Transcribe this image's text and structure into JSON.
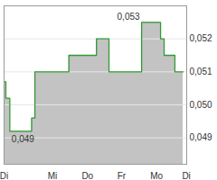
{
  "chart_data": {
    "type": "line",
    "x": [
      0,
      0.05,
      0.16,
      0.77,
      0.86,
      1.81,
      2.58,
      2.93,
      3.84,
      4.37,
      4.47,
      4.77,
      5.0
    ],
    "values": [
      0.0507,
      0.0502,
      0.0492,
      0.0496,
      0.051,
      0.0515,
      0.052,
      0.051,
      0.0525,
      0.052,
      0.0515,
      0.051,
      0.051
    ],
    "color": "#339933",
    "line_style": "step",
    "xlim": [
      0,
      5.1
    ],
    "xticks": [
      {
        "value": 0,
        "label": "Di"
      },
      {
        "value": 1.35,
        "label": "Mi"
      },
      {
        "value": 2.33,
        "label": "Do"
      },
      {
        "value": 3.28,
        "label": "Fr"
      },
      {
        "value": 4.26,
        "label": "Mo"
      },
      {
        "value": 5.09,
        "label": "Di"
      }
    ],
    "ylim": [
      0.0482,
      0.053
    ],
    "yticks": [
      {
        "value": 0.049,
        "label": "0,049"
      },
      {
        "value": 0.05,
        "label": "0,050"
      },
      {
        "value": 0.051,
        "label": "0,051"
      },
      {
        "value": 0.052,
        "label": "0,052"
      }
    ],
    "grid": true,
    "annotations": [
      "0,053",
      "0,049"
    ]
  }
}
